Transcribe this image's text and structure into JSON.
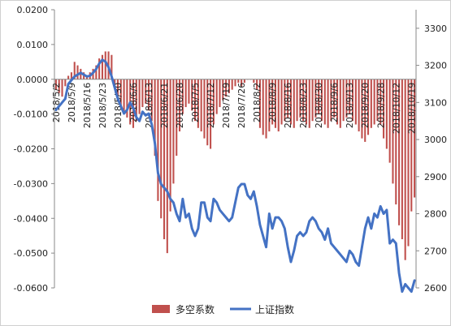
{
  "chart_data": {
    "type": "bar+line",
    "title": "",
    "colors": {
      "bar": "#c0504d",
      "line": "#4472c4"
    },
    "left_axis": {
      "range": [
        -0.06,
        0.02
      ],
      "ticks": [
        "0.0200",
        "0.0100",
        "0.0000",
        "-0.0100",
        "-0.0200",
        "-0.0300",
        "-0.0400",
        "-0.0500",
        "-0.0600"
      ]
    },
    "right_axis": {
      "range": [
        2600,
        3350
      ],
      "ticks": [
        "3300",
        "3200",
        "3100",
        "3000",
        "2900",
        "2800",
        "2700",
        "2600"
      ]
    },
    "x_ticks": [
      {
        "label": "2018/5/2",
        "index": 0
      },
      {
        "label": "2018/5/9",
        "index": 5
      },
      {
        "label": "2018/5/16",
        "index": 10
      },
      {
        "label": "2018/5/23",
        "index": 15
      },
      {
        "label": "2018/5/30",
        "index": 20
      },
      {
        "label": "2018/6/6",
        "index": 25
      },
      {
        "label": "2018/6/13",
        "index": 30
      },
      {
        "label": "2018/6/21",
        "index": 35
      },
      {
        "label": "2018/6/28",
        "index": 40
      },
      {
        "label": "2018/7/5",
        "index": 45
      },
      {
        "label": "2018/7/12",
        "index": 50
      },
      {
        "label": "2018/7/19",
        "index": 55
      },
      {
        "label": "2018/7/26",
        "index": 60
      },
      {
        "label": "2018/8/2",
        "index": 65
      },
      {
        "label": "2018/8/9",
        "index": 70
      },
      {
        "label": "2018/8/16",
        "index": 75
      },
      {
        "label": "2018/8/23",
        "index": 80
      },
      {
        "label": "2018/8/30",
        "index": 85
      },
      {
        "label": "2018/9/6",
        "index": 90
      },
      {
        "label": "2018/9/13",
        "index": 95
      },
      {
        "label": "2018/9/20",
        "index": 100
      },
      {
        "label": "2018/9/28",
        "index": 105
      },
      {
        "label": "2018/10/12",
        "index": 110
      },
      {
        "label": "2018/10/19",
        "index": 115
      }
    ],
    "series": [
      {
        "name": "多空系数",
        "axis": "left",
        "kind": "bar",
        "values": [
          -0.003,
          -0.004,
          -0.005,
          -0.002,
          0.001,
          0.002,
          0.005,
          0.004,
          0.003,
          0.002,
          0.001,
          0.002,
          0.003,
          0.004,
          0.006,
          0.007,
          0.008,
          0.008,
          0.007,
          -0.002,
          -0.005,
          -0.008,
          -0.01,
          -0.011,
          -0.013,
          -0.014,
          -0.012,
          -0.01,
          -0.008,
          -0.007,
          -0.009,
          -0.012,
          -0.022,
          -0.035,
          -0.04,
          -0.046,
          -0.05,
          -0.038,
          -0.03,
          -0.022,
          -0.015,
          -0.01,
          -0.008,
          -0.007,
          -0.009,
          -0.012,
          -0.014,
          -0.015,
          -0.017,
          -0.019,
          -0.02,
          -0.013,
          -0.01,
          -0.008,
          -0.006,
          -0.005,
          -0.004,
          -0.003,
          -0.002,
          -0.001,
          -0.002,
          -0.001,
          0.0,
          0.0,
          -0.001,
          -0.003,
          -0.014,
          -0.016,
          -0.017,
          -0.015,
          -0.013,
          -0.014,
          -0.015,
          -0.013,
          -0.012,
          -0.011,
          -0.013,
          -0.014,
          -0.012,
          -0.011,
          -0.012,
          -0.013,
          -0.014,
          -0.012,
          -0.011,
          -0.01,
          -0.012,
          -0.013,
          -0.014,
          -0.012,
          -0.011,
          -0.013,
          -0.014,
          -0.012,
          -0.011,
          -0.01,
          -0.012,
          -0.013,
          -0.015,
          -0.017,
          -0.018,
          -0.016,
          -0.014,
          -0.013,
          -0.012,
          -0.013,
          -0.017,
          -0.02,
          -0.024,
          -0.03,
          -0.036,
          -0.042,
          -0.046,
          -0.052,
          -0.048,
          -0.038,
          -0.034
        ]
      },
      {
        "name": "上证指数",
        "axis": "right",
        "kind": "line",
        "values": [
          3080,
          3090,
          3100,
          3110,
          3150,
          3160,
          3170,
          3175,
          3180,
          3175,
          3170,
          3172,
          3180,
          3190,
          3205,
          3215,
          3210,
          3195,
          3170,
          3140,
          3110,
          3090,
          3070,
          3080,
          3100,
          3085,
          3060,
          3050,
          3075,
          3065,
          3070,
          3040,
          2990,
          2910,
          2880,
          2870,
          2860,
          2840,
          2830,
          2800,
          2780,
          2840,
          2790,
          2800,
          2760,
          2740,
          2760,
          2830,
          2830,
          2790,
          2780,
          2840,
          2830,
          2810,
          2800,
          2790,
          2780,
          2790,
          2830,
          2870,
          2880,
          2880,
          2850,
          2840,
          2860,
          2820,
          2770,
          2740,
          2710,
          2800,
          2760,
          2790,
          2790,
          2780,
          2760,
          2710,
          2670,
          2700,
          2740,
          2750,
          2740,
          2750,
          2780,
          2790,
          2780,
          2760,
          2750,
          2730,
          2760,
          2720,
          2710,
          2700,
          2690,
          2680,
          2670,
          2700,
          2690,
          2670,
          2660,
          2710,
          2760,
          2790,
          2760,
          2800,
          2790,
          2820,
          2800,
          2810,
          2720,
          2730,
          2720,
          2640,
          2590,
          2610,
          2600,
          2590,
          2620
        ]
      }
    ],
    "legend": {
      "position": "bottom",
      "entries": [
        "多空系数",
        "上证指数"
      ]
    },
    "grid": false
  }
}
